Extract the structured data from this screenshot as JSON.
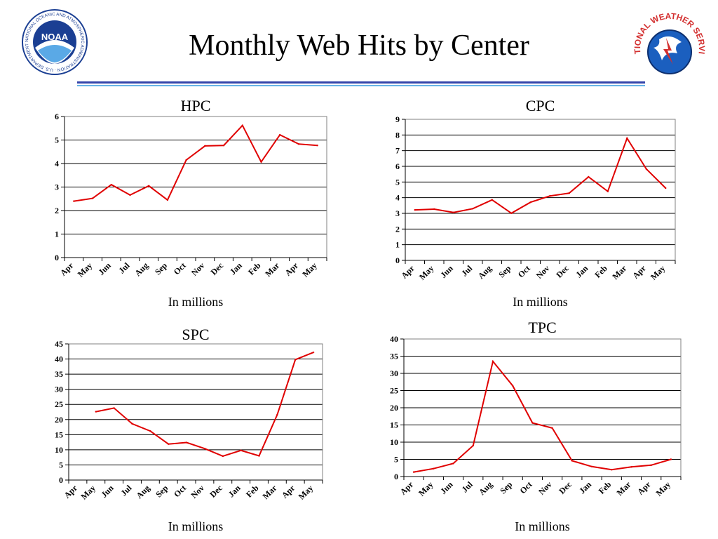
{
  "page": {
    "title": "Monthly Web Hits by Center",
    "logos": {
      "noaa": {
        "text": "NOAA",
        "icon": "noaa-logo-icon",
        "ring_text": "NATIONAL OCEANIC AND ATMOSPHERIC ADMINISTRATION · U.S. DEPARTMENT OF COMMERCE"
      },
      "nws": {
        "icon": "nws-logo-icon",
        "ring_text": "NATIONAL WEATHER SERVICE"
      }
    },
    "colors": {
      "series": "#e00000",
      "rule_dark": "#3344aa",
      "rule_light": "#66b3e6",
      "noaa_blue": "#1b3f93",
      "nws_red": "#d32f2f"
    }
  },
  "chart_data": [
    {
      "id": "hpc",
      "type": "line",
      "title": "HPC",
      "xlabel": "In millions",
      "ylabel": "",
      "categories": [
        "Apr",
        "May",
        "Jun",
        "Jul",
        "Aug",
        "Sep",
        "Oct",
        "Nov",
        "Dec",
        "Jan",
        "Feb",
        "Mar",
        "Apr",
        "May"
      ],
      "ylim": [
        0,
        6
      ],
      "ystep": 1,
      "grid": true,
      "series": [
        {
          "values": [
            2.4,
            2.52,
            3.1,
            2.66,
            3.05,
            2.45,
            4.15,
            4.75,
            4.77,
            5.62,
            4.07,
            5.22,
            4.83,
            4.77
          ]
        }
      ]
    },
    {
      "id": "cpc",
      "type": "line",
      "title": "CPC",
      "xlabel": "In millions",
      "ylabel": "",
      "categories": [
        "Apr",
        "May",
        "Jun",
        "Jul",
        "Aug",
        "Sep",
        "Oct",
        "Nov",
        "Dec",
        "Jan",
        "Feb",
        "Mar",
        "Apr",
        "May"
      ],
      "ylim": [
        0,
        9
      ],
      "ystep": 1,
      "grid": true,
      "series": [
        {
          "values": [
            3.22,
            3.27,
            3.06,
            3.3,
            3.86,
            3.01,
            3.71,
            4.11,
            4.29,
            5.33,
            4.4,
            7.79,
            5.83,
            4.61
          ]
        }
      ]
    },
    {
      "id": "spc",
      "type": "line",
      "title": "SPC",
      "xlabel": "In millions",
      "ylabel": "",
      "categories": [
        "Apr",
        "May",
        "Jun",
        "Jul",
        "Aug",
        "Sep",
        "Oct",
        "Nov",
        "Dec",
        "Jan",
        "Feb",
        "Mar",
        "Apr",
        "May"
      ],
      "ylim": [
        0,
        45
      ],
      "ystep": 5,
      "grid": true,
      "series": [
        {
          "values": [
            null,
            22.6,
            23.8,
            18.6,
            16.2,
            11.9,
            12.4,
            10.4,
            7.9,
            9.8,
            8.0,
            21.6,
            39.8,
            42.2
          ]
        }
      ]
    },
    {
      "id": "tpc",
      "type": "line",
      "title": "TPC",
      "xlabel": "In millions",
      "ylabel": "",
      "categories": [
        "Apr",
        "May",
        "Jun",
        "Jul",
        "Aug",
        "Sep",
        "Oct",
        "Nov",
        "Dec",
        "Jan",
        "Feb",
        "Mar",
        "Apr",
        "May"
      ],
      "ylim": [
        0,
        40
      ],
      "ystep": 5,
      "grid": true,
      "series": [
        {
          "values": [
            1.3,
            2.3,
            3.8,
            9.0,
            33.5,
            26.4,
            15.6,
            14.1,
            4.6,
            2.9,
            2.0,
            2.8,
            3.3,
            5.0
          ]
        }
      ]
    }
  ]
}
